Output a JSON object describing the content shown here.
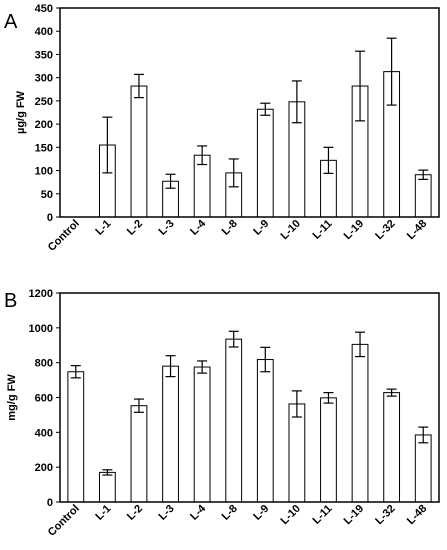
{
  "chart_data": [
    {
      "type": "bar",
      "panel_label": "A",
      "ylabel": "µg/g FW",
      "ylim": [
        0,
        450
      ],
      "yticks": [
        0,
        50,
        100,
        150,
        200,
        250,
        300,
        350,
        400,
        450
      ],
      "categories": [
        "Control",
        "L-1",
        "L-2",
        "L-3",
        "L-4",
        "L-8",
        "L-9",
        "L-10",
        "L-11",
        "L-19",
        "L-32",
        "L-48"
      ],
      "values": [
        0,
        155,
        282,
        77,
        133,
        95,
        232,
        248,
        122,
        282,
        313,
        91
      ],
      "errors": [
        0,
        60,
        25,
        15,
        20,
        30,
        13,
        45,
        28,
        75,
        72,
        10
      ],
      "bar_color": "#ffffff",
      "edge_color": "#000000",
      "grid": false
    },
    {
      "type": "bar",
      "panel_label": "B",
      "ylabel": "mg/g FW",
      "ylim": [
        0,
        1200
      ],
      "yticks": [
        0,
        200,
        400,
        600,
        800,
        1000,
        1200
      ],
      "categories": [
        "Control",
        "L-1",
        "L-2",
        "L-3",
        "L-4",
        "L-8",
        "L-9",
        "L-10",
        "L-11",
        "L-19",
        "L-32",
        "L-48"
      ],
      "values": [
        748,
        170,
        553,
        780,
        775,
        935,
        818,
        563,
        598,
        905,
        628,
        385
      ],
      "errors": [
        35,
        15,
        38,
        60,
        35,
        45,
        70,
        75,
        30,
        70,
        20,
        45
      ],
      "bar_color": "#ffffff",
      "edge_color": "#000000",
      "grid": false
    }
  ]
}
